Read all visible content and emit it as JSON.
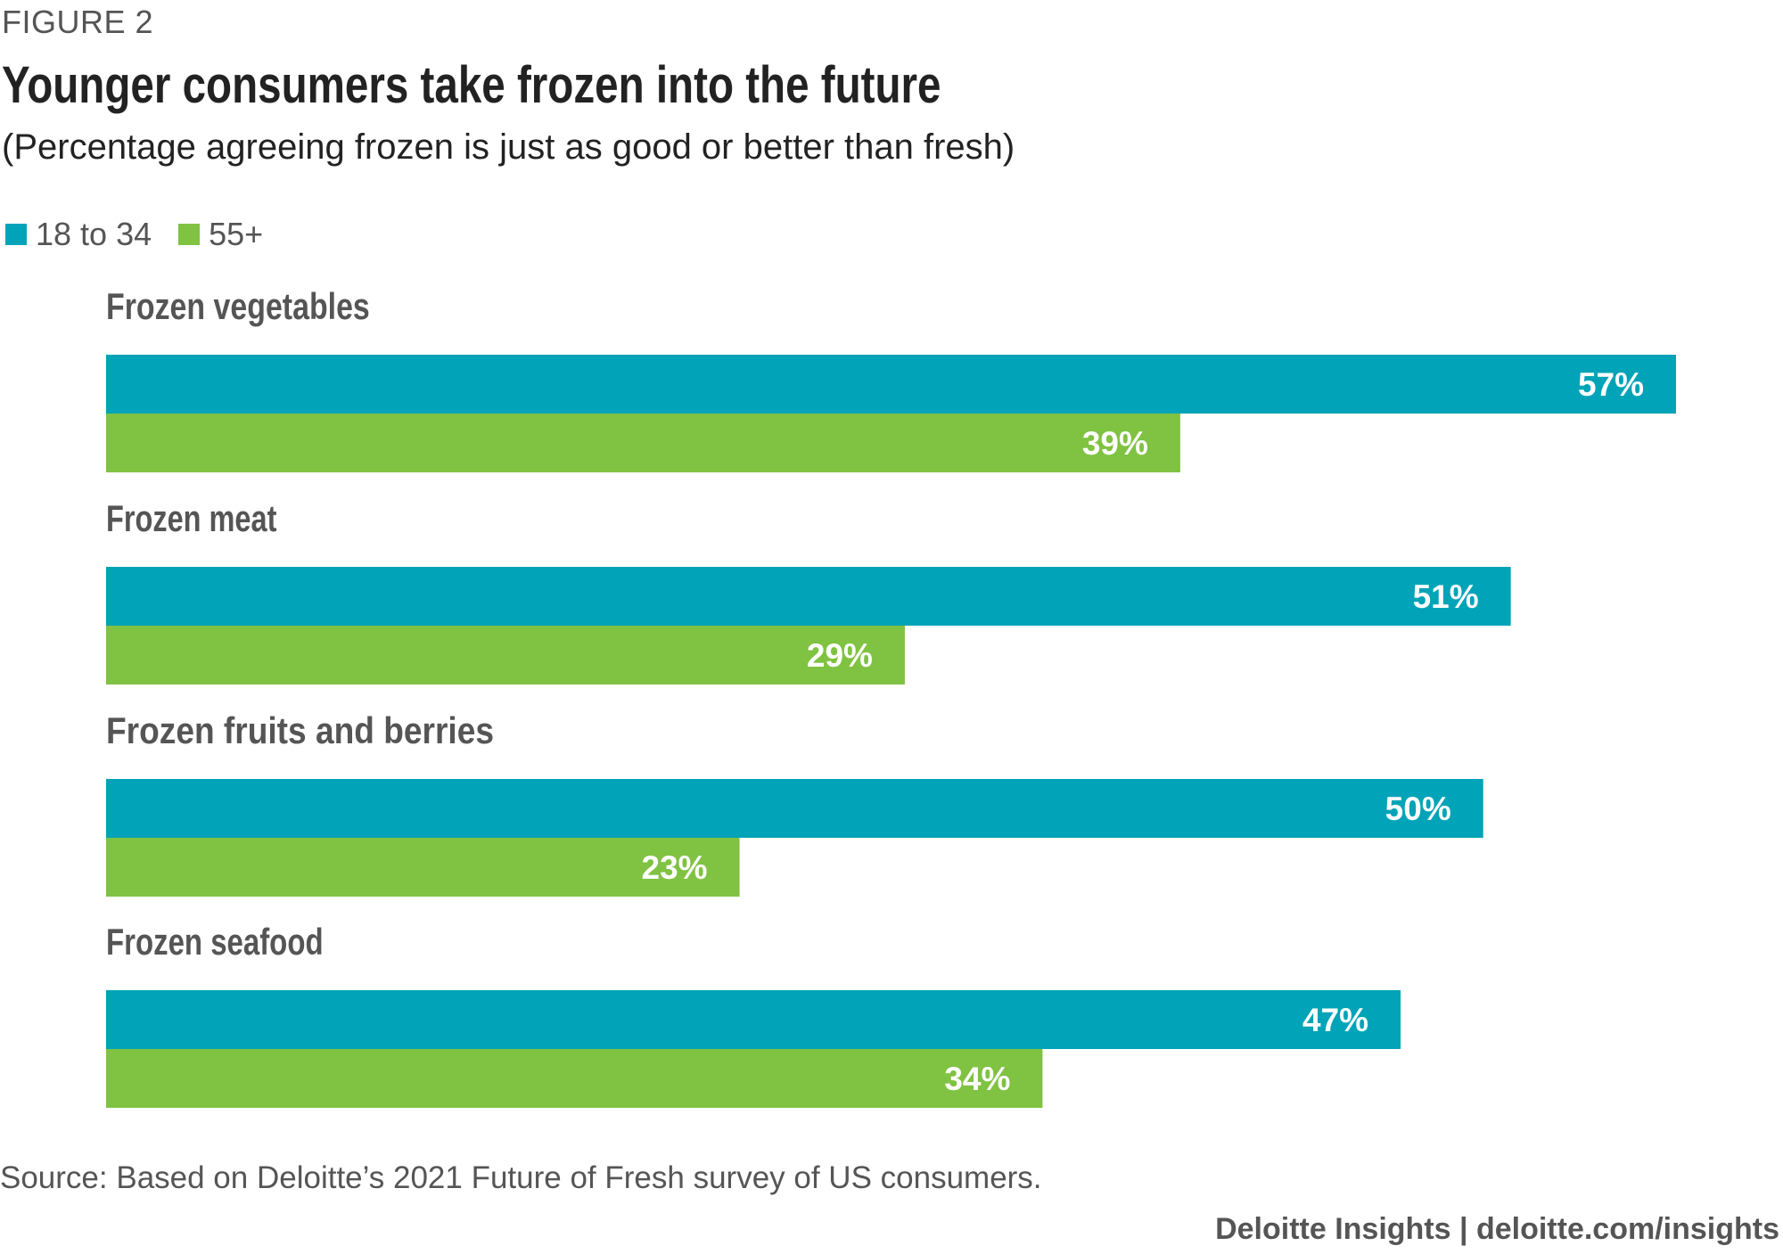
{
  "figure_label": "FIGURE 2",
  "title": "Younger consumers take frozen into the future",
  "subtitle": "(Percentage agreeing frozen is just as good or better than fresh)",
  "legend": [
    {
      "label": "18 to 34",
      "color": "#00A3B7"
    },
    {
      "label": "55+",
      "color": "#80C242"
    }
  ],
  "source": "Source: Based on Deloitte’s 2021 Future of Fresh survey of US consumers.",
  "footer": "Deloitte Insights | deloitte.com/insights",
  "chart_data": {
    "type": "bar",
    "orientation": "horizontal",
    "categories": [
      "Frozen vegetables",
      "Frozen meat",
      "Frozen fruits and berries",
      "Frozen seafood"
    ],
    "series": [
      {
        "name": "18 to 34",
        "color": "#00A3B7",
        "values": [
          57,
          51,
          50,
          47
        ]
      },
      {
        "name": "55+",
        "color": "#80C242",
        "values": [
          39,
          29,
          23,
          34
        ]
      }
    ],
    "value_suffix": "%",
    "xlim": [
      0,
      57
    ],
    "legend_position": "top-left",
    "grid": false
  }
}
